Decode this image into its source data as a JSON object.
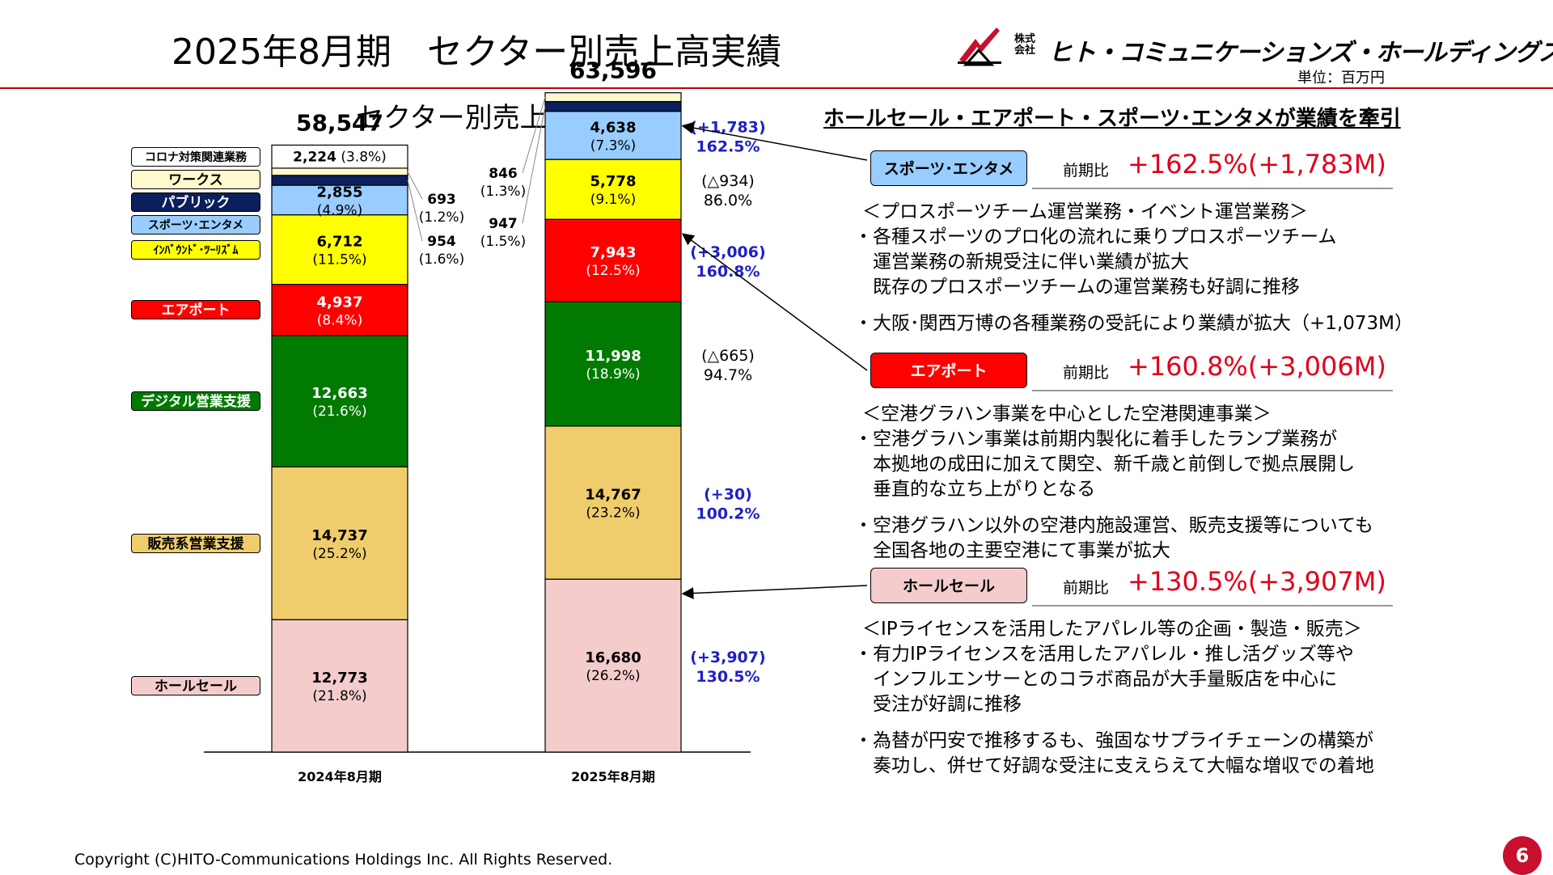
{
  "header": {
    "title": "2025年8月期　セクター別売上高実績",
    "company_prefix": "株式会社",
    "company_name": "ヒト・コミュニケーションズ・ホールディングス",
    "unit": "単位：百万円"
  },
  "chart_subtitle": "セクター別売上高",
  "headline": "ホールセール・エアポート・スポーツ･エンタメが業績を牽引",
  "chart_data": {
    "type": "bar",
    "stacked": true,
    "categories": [
      "2024年8月期",
      "2025年8月期"
    ],
    "totals": [
      "58,547",
      "63,596"
    ],
    "series": [
      {
        "name": "ホールセール",
        "color": "#f4cccc",
        "values": [
          12773,
          16680
        ],
        "value_labels": [
          "12,773",
          "16,680"
        ],
        "pct_labels": [
          "(21.8%)",
          "(26.2%)"
        ],
        "change": "(+3,907)",
        "change_pct": "130.5%",
        "change_color": "#1f1fc8",
        "inside": true
      },
      {
        "name": "販売系営業支援",
        "color": "#f0cd6c",
        "values": [
          14737,
          14767
        ],
        "value_labels": [
          "14,737",
          "14,767"
        ],
        "pct_labels": [
          "(25.2%)",
          "(23.2%)"
        ],
        "change": "(+30)",
        "change_pct": "100.2%",
        "change_color": "#1f1fc8",
        "inside": true
      },
      {
        "name": "デジタル営業支援",
        "color": "#007a00",
        "values": [
          12663,
          11998
        ],
        "value_labels": [
          "12,663",
          "11,998"
        ],
        "pct_labels": [
          "(21.6%)",
          "(18.9%)"
        ],
        "change": "(△665)",
        "change_pct": "94.7%",
        "change_color": "#000000",
        "inside": true
      },
      {
        "name": "エアポート",
        "color": "#ff0000",
        "values": [
          4937,
          7943
        ],
        "value_labels": [
          "4,937",
          "7,943"
        ],
        "pct_labels": [
          "(8.4%)",
          "(12.5%)"
        ],
        "change": "(+3,006)",
        "change_pct": "160.8%",
        "change_color": "#1f1fc8",
        "inside": true
      },
      {
        "name": "ｲﾝﾊﾞｳﾝﾄﾞ･ﾂｰﾘｽﾞﾑ",
        "color": "#ffff00",
        "values": [
          6712,
          5778
        ],
        "value_labels": [
          "6,712",
          "5,778"
        ],
        "pct_labels": [
          "(11.5%)",
          "(9.1%)"
        ],
        "change": "(△934)",
        "change_pct": "86.0%",
        "change_color": "#000000",
        "inside": true
      },
      {
        "name": "スポーツ･エンタメ",
        "color": "#99ccff",
        "values": [
          2855,
          4638
        ],
        "value_labels": [
          "2,855",
          "4,638"
        ],
        "pct_labels": [
          "(4.9%)",
          "(7.3%)"
        ],
        "change": "(+1,783)",
        "change_pct": "162.5%",
        "change_color": "#1f1fc8",
        "inside": true
      },
      {
        "name": "パブリック",
        "color": "#0a1f5c",
        "values": [
          954,
          947
        ],
        "value_labels": [
          "954",
          "947"
        ],
        "pct_labels": [
          "(1.6%)",
          "(1.5%)"
        ],
        "inside": false
      },
      {
        "name": "ワークス",
        "color": "#fffacd",
        "values": [
          693,
          846
        ],
        "value_labels": [
          "693",
          "846"
        ],
        "pct_labels": [
          "(1.2%)",
          "(1.3%)"
        ],
        "inside": false
      },
      {
        "name": "コロナ対策関連業務",
        "color": "#ffffff",
        "values": [
          2224,
          0
        ],
        "value_labels": [
          "2,224",
          ""
        ],
        "pct_labels": [
          "(3.8%)",
          ""
        ],
        "inside": false
      }
    ]
  },
  "sections": [
    {
      "name": "スポーツ･エンタメ",
      "color": "#99ccff",
      "compare_label": "前期比",
      "compare_value": "+162.5%(+1,783M)",
      "subtitle": "＜プロスポーツチーム運営業務・イベント運営業務＞",
      "bullets": [
        "・各種スポーツのプロ化の流れに乗りプロスポーツチーム\n　運営業務の新規受注に伴い業績が拡大\n　既存のプロスポーツチームの運営業務も好調に推移",
        "・大阪･関西万博の各種業務の受託により業績が拡大（+1,073M）"
      ]
    },
    {
      "name": "エアポート",
      "color": "#ff0000",
      "compare_label": "前期比",
      "compare_value": "+160.8%(+3,006M)",
      "subtitle": "＜空港グラハン事業を中心とした空港関連事業＞",
      "bullets": [
        "・空港グラハン事業は前期内製化に着手したランプ業務が\n　本拠地の成田に加えて関空、新千歳と前倒しで拠点展開し\n　垂直的な立ち上がりとなる",
        "・空港グラハン以外の空港内施設運営、販売支援等についても\n　全国各地の主要空港にて事業が拡大"
      ]
    },
    {
      "name": "ホールセール",
      "color": "#f4cccc",
      "compare_label": "前期比",
      "compare_value": "+130.5%(+3,907M)",
      "subtitle": "＜IPライセンスを活用したアパレル等の企画・製造・販売＞",
      "bullets": [
        "・有力IPライセンスを活用したアパレル・推し活グッズ等や\n　インフルエンサーとのコラボ商品が大手量販店を中心に\n　受注が好調に推移",
        "・為替が円安で推移するも、強固なサプライチェーンの構築が\n　奏功し、併せて好調な受注に支えらえて大幅な増収での着地"
      ]
    }
  ],
  "footer": {
    "copyright": "Copyright (C)HITO-Communications Holdings Inc. All Rights Reserved.",
    "page_number": "6"
  }
}
